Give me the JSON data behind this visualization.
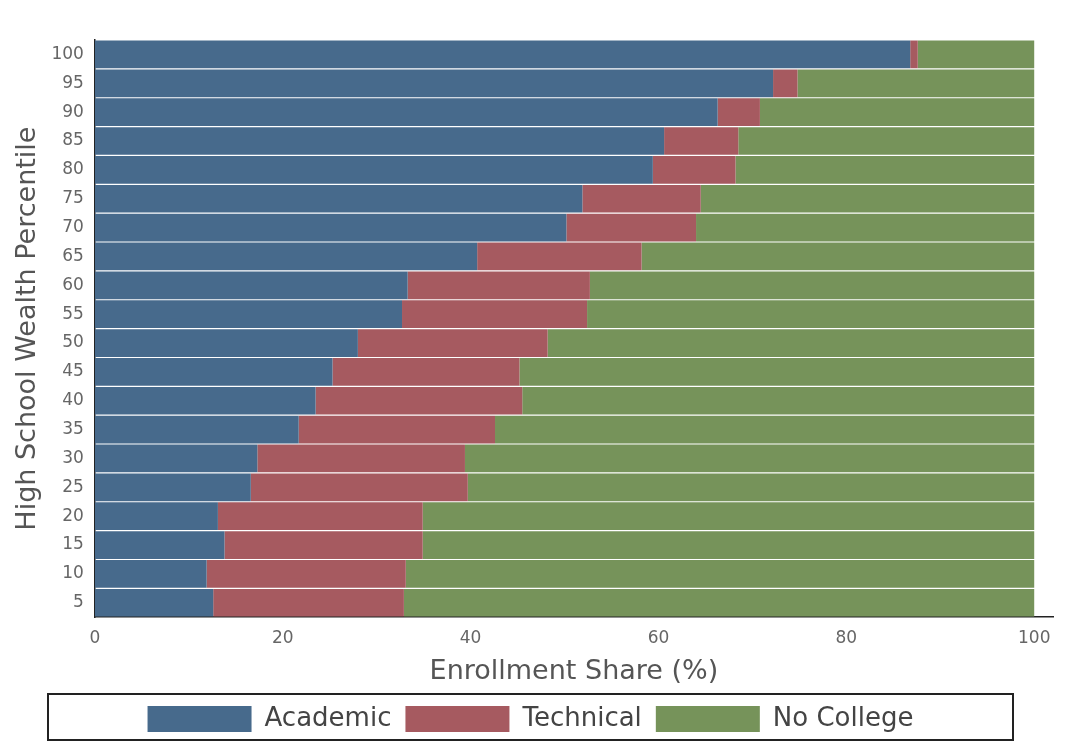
{
  "chart_data": {
    "type": "bar",
    "orientation": "horizontal",
    "stacked": true,
    "xlabel": "Enrollment Share (%)",
    "ylabel": "High School Wealth Percentile",
    "categories": [
      "100",
      "95",
      "90",
      "85",
      "80",
      "75",
      "70",
      "65",
      "60",
      "55",
      "50",
      "45",
      "40",
      "35",
      "30",
      "25",
      "20",
      "15",
      "10",
      "5"
    ],
    "series": [
      {
        "name": "Academic",
        "color": "#476a8c",
        "values": [
          86.8,
          72.2,
          66.3,
          60.6,
          59.4,
          51.9,
          50.2,
          40.7,
          33.3,
          32.7,
          28.0,
          25.3,
          23.5,
          21.7,
          17.3,
          16.6,
          13.1,
          13.8,
          11.9,
          12.6
        ]
      },
      {
        "name": "Technical",
        "color": "#a65a60",
        "values": [
          0.8,
          2.6,
          4.5,
          7.9,
          8.8,
          12.6,
          13.8,
          17.5,
          19.4,
          19.7,
          20.2,
          19.9,
          22.0,
          20.9,
          22.1,
          23.1,
          21.8,
          21.1,
          21.2,
          20.3
        ]
      },
      {
        "name": "No College",
        "color": "#76935a",
        "values": [
          12.4,
          25.2,
          29.2,
          31.5,
          31.8,
          35.5,
          36.0,
          41.8,
          47.3,
          47.6,
          51.8,
          54.8,
          54.5,
          57.4,
          60.6,
          60.3,
          65.1,
          65.1,
          66.9,
          67.1
        ]
      }
    ],
    "xlim": [
      0,
      102
    ],
    "xticks": [
      0,
      20,
      40,
      60,
      80,
      100
    ],
    "grid": false,
    "legend": "bottom"
  }
}
